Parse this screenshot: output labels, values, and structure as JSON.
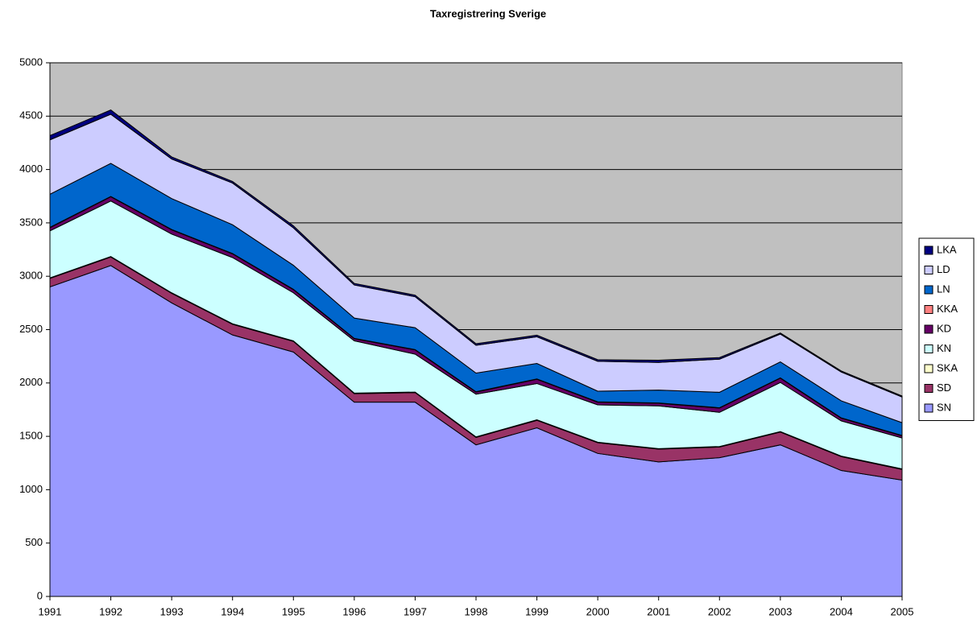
{
  "chart_data": {
    "type": "stacked-area",
    "title": "Taxregistrering Sverige",
    "x": [
      1991,
      1992,
      1993,
      1994,
      1995,
      1996,
      1997,
      1998,
      1999,
      2000,
      2001,
      2002,
      2003,
      2004,
      2005
    ],
    "series": [
      {
        "name": "SN",
        "color": "#9999ff",
        "values": [
          2900,
          3100,
          2750,
          2450,
          2290,
          1820,
          1820,
          1420,
          1580,
          1340,
          1260,
          1300,
          1420,
          1180,
          1090
        ]
      },
      {
        "name": "SD",
        "color": "#993366",
        "values": [
          80,
          80,
          90,
          100,
          100,
          80,
          90,
          70,
          70,
          100,
          120,
          100,
          120,
          130,
          100
        ]
      },
      {
        "name": "SKA",
        "color": "#ffffcc",
        "values": [
          5,
          5,
          5,
          5,
          5,
          5,
          5,
          5,
          5,
          5,
          5,
          5,
          5,
          5,
          5
        ]
      },
      {
        "name": "KN",
        "color": "#ccffff",
        "values": [
          440,
          520,
          550,
          620,
          450,
          490,
          355,
          400,
          340,
          350,
          400,
          320,
          460,
          330,
          290
        ]
      },
      {
        "name": "KD",
        "color": "#660066",
        "values": [
          30,
          40,
          40,
          35,
          30,
          20,
          40,
          20,
          40,
          25,
          25,
          40,
          40,
          25,
          20
        ]
      },
      {
        "name": "KKA",
        "color": "#ff8080",
        "values": [
          3,
          3,
          3,
          3,
          3,
          3,
          3,
          3,
          3,
          3,
          3,
          3,
          3,
          3,
          3
        ]
      },
      {
        "name": "LN",
        "color": "#0066cc",
        "values": [
          310,
          310,
          290,
          270,
          225,
          190,
          205,
          175,
          145,
          100,
          120,
          145,
          150,
          160,
          120
        ]
      },
      {
        "name": "LD",
        "color": "#ccccff",
        "values": [
          510,
          460,
          370,
          390,
          350,
          310,
          290,
          260,
          250,
          280,
          260,
          310,
          260,
          270,
          240
        ]
      },
      {
        "name": "LKA",
        "color": "#000080",
        "values": [
          40,
          40,
          20,
          15,
          20,
          15,
          15,
          15,
          15,
          15,
          20,
          15,
          10,
          10,
          10
        ]
      }
    ],
    "ylim": [
      0,
      5000
    ],
    "yticks": [
      0,
      500,
      1000,
      1500,
      2000,
      2500,
      3000,
      3500,
      4000,
      4500,
      5000
    ],
    "grid": true,
    "legend": "right",
    "plot_background": "#c0c0c0"
  }
}
